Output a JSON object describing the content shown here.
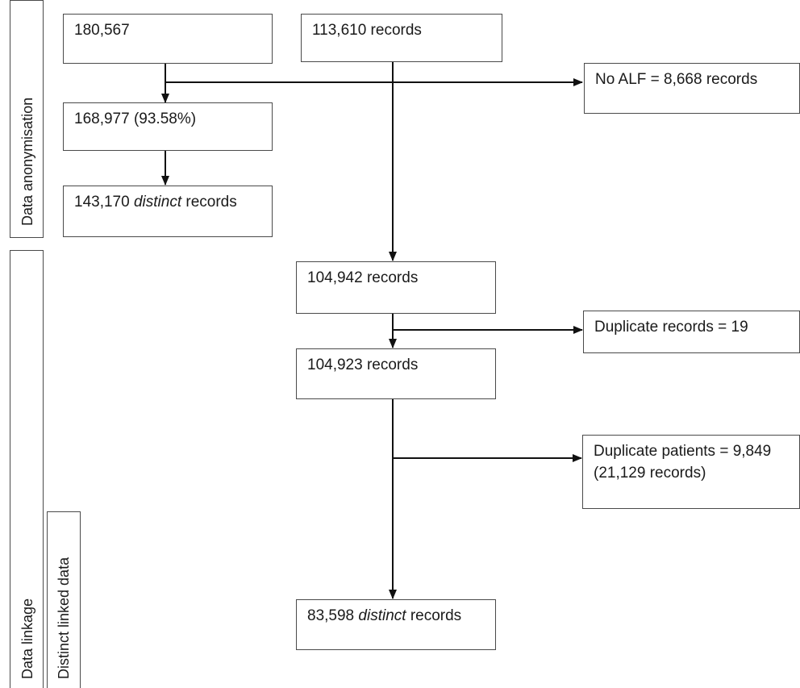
{
  "sections": {
    "anonymisation": "Data anonymisation",
    "linkage": "Data linkage",
    "distinct": "Distinct linked data"
  },
  "boxes": {
    "top_left": "180,567",
    "top_middle": "113,610 records",
    "no_alf": "No ALF = 8,668 records",
    "after_anon": "168,977 (93.58%)",
    "distinct_left": {
      "number": "143,170 ",
      "italic": "distinct",
      "suffix": " records"
    },
    "linked": "104,942 records",
    "dup_records": "Duplicate records = 19",
    "after_dup": "104,923 records",
    "dup_patients_line1": "Duplicate patients = 9,849",
    "dup_patients_line2": "(21,129 records)",
    "final": {
      "number": "83,598 ",
      "italic": "distinct",
      "suffix": " records"
    }
  }
}
